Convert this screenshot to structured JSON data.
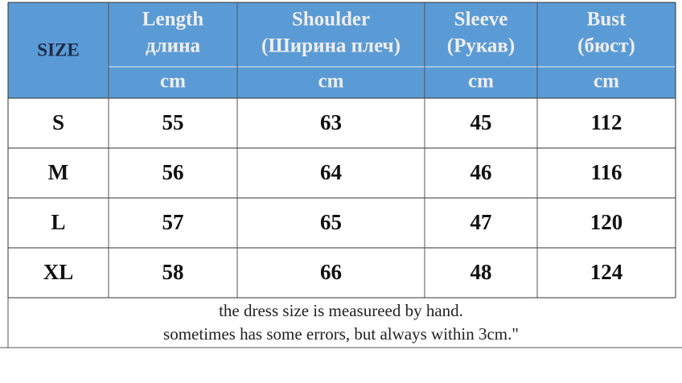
{
  "header": {
    "size_label": "SIZE",
    "columns": [
      {
        "title": "Length",
        "subtitle": "длина",
        "unit": "cm"
      },
      {
        "title": "Shoulder",
        "subtitle": "(Ширина плеч)",
        "unit": "cm"
      },
      {
        "title": "Sleeve",
        "subtitle": "(Рукав)",
        "unit": "cm"
      },
      {
        "title": "Bust",
        "subtitle": "(бюст)",
        "unit": "cm"
      }
    ]
  },
  "table": {
    "rows": [
      [
        "S",
        55,
        63,
        45,
        112
      ],
      [
        "M",
        56,
        64,
        46,
        116
      ],
      [
        "L",
        57,
        65,
        47,
        120
      ],
      [
        "XL",
        58,
        66,
        48,
        124
      ]
    ]
  },
  "footer": {
    "lines": [
      "the dress size is measureed by hand.",
      "sometimes has some errors, but always within 3cm.\""
    ]
  }
}
